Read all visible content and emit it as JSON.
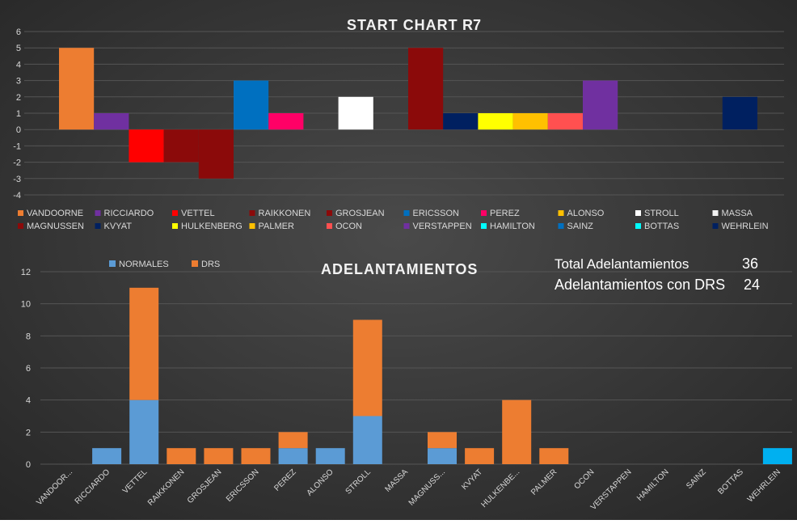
{
  "chart_data": [
    {
      "type": "bar",
      "title": "START CHART",
      "subtitle": "R7",
      "ylim": [
        -4,
        6
      ],
      "y_ticks": [
        6,
        5,
        4,
        3,
        2,
        1,
        0,
        -1,
        -2,
        -3,
        -4
      ],
      "grid": true,
      "series": [
        {
          "name": "VANDOORNE",
          "value": 5,
          "color": "#ED7D31"
        },
        {
          "name": "RICCIARDO",
          "value": 1,
          "color": "#7030A0"
        },
        {
          "name": "VETTEL",
          "value": -2,
          "color": "#FF0000"
        },
        {
          "name": "RAIKKONEN",
          "value": -2,
          "color": "#8B0A0A"
        },
        {
          "name": "GROSJEAN",
          "value": -3,
          "color": "#8B0A0A"
        },
        {
          "name": "ERICSSON",
          "value": 3,
          "color": "#0070C0"
        },
        {
          "name": "PEREZ",
          "value": 1,
          "color": "#FF0066"
        },
        {
          "name": "ALONSO",
          "value": 0,
          "color": "#FFC000"
        },
        {
          "name": "STROLL",
          "value": 2,
          "color": "#FFFFFF"
        },
        {
          "name": "MASSA",
          "value": 0,
          "color": "#F2F2F2"
        },
        {
          "name": "MAGNUSSEN",
          "value": 5,
          "color": "#8B0A0A"
        },
        {
          "name": "KVYAT",
          "value": 1,
          "color": "#002060"
        },
        {
          "name": "HULKENBERG",
          "value": 1,
          "color": "#FFFF00"
        },
        {
          "name": "PALMER",
          "value": 1,
          "color": "#FFC000"
        },
        {
          "name": "OCON",
          "value": 1,
          "color": "#FF5050"
        },
        {
          "name": "VERSTAPPEN",
          "value": 3,
          "color": "#7030A0"
        },
        {
          "name": "HAMILTON",
          "value": 0,
          "color": "#00FFFF"
        },
        {
          "name": "SAINZ",
          "value": 0,
          "color": "#0070C0"
        },
        {
          "name": "BOTTAS",
          "value": 0,
          "color": "#00FFFF"
        },
        {
          "name": "WEHRLEIN",
          "value": 2,
          "color": "#002060"
        }
      ],
      "legend": "bottom"
    },
    {
      "type": "bar",
      "stacked": true,
      "title": "ADELANTAMIENTOS",
      "categories": [
        "VANDOOR...",
        "RICCIARDO",
        "VETTEL",
        "RAIKKONEN",
        "GROSJEAN",
        "ERICSSON",
        "PEREZ",
        "ALONSO",
        "STROLL",
        "MASSA",
        "MAGNUSS...",
        "KVYAT",
        "HULKENBE...",
        "PALMER",
        "OCON",
        "VERSTAPPEN",
        "HAMILTON",
        "SAINZ",
        "BOTTAS",
        "WEHRLEIN"
      ],
      "series": [
        {
          "name": "NORMALES",
          "color": "#5B9BD5",
          "values": [
            0,
            1,
            4,
            0,
            0,
            0,
            1,
            1,
            3,
            0,
            1,
            0,
            0,
            0,
            0,
            0,
            0,
            0,
            0,
            1
          ]
        },
        {
          "name": "DRS",
          "color": "#ED7D31",
          "values": [
            0,
            0,
            7,
            1,
            1,
            1,
            1,
            0,
            6,
            0,
            1,
            1,
            4,
            1,
            0,
            0,
            0,
            0,
            0,
            0
          ]
        }
      ],
      "highlight_colors": [
        "#00B0F0"
      ],
      "ylim": [
        0,
        12
      ],
      "y_ticks": [
        12,
        10,
        8,
        6,
        4,
        2,
        0
      ],
      "grid": true,
      "legend": "top"
    }
  ],
  "summary": {
    "total_label": "Total Adelantamientos",
    "total_value": "36",
    "drs_label": "Adelantamientos con DRS",
    "drs_value": "24"
  },
  "colors": {
    "background": "#303030",
    "grid": "#555555",
    "text": "#D9D9D9",
    "title": "#F2F2F2"
  }
}
